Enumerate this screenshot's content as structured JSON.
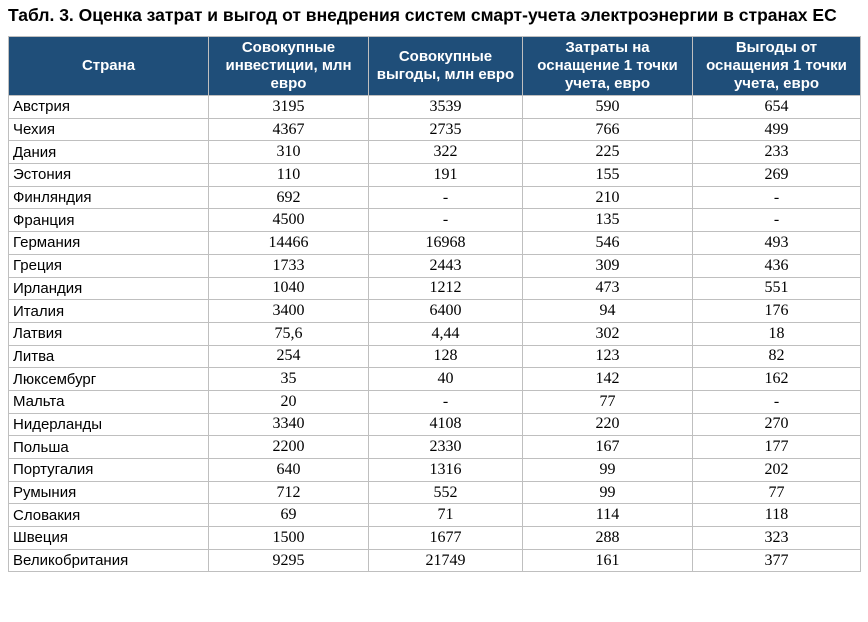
{
  "title": "Табл. 3. Оценка затрат и выгод от внедрения систем смарт-учета электроэнергии в странах ЕС",
  "colors": {
    "header_bg": "#1F4E79",
    "header_text": "#FFFFFF",
    "grid": "#BFBFBF"
  },
  "table": {
    "columns": [
      "Страна",
      "Совокупные инвестиции, млн евро",
      "Совокупные выгоды, млн евро",
      "Затраты на оснащение 1 точки учета, евро",
      "Выгоды от оснащения 1 точки учета, евро"
    ],
    "rows": [
      {
        "country": "Австрия",
        "values": [
          "3195",
          "3539",
          "590",
          "654"
        ]
      },
      {
        "country": "Чехия",
        "values": [
          "4367",
          "2735",
          "766",
          "499"
        ]
      },
      {
        "country": "Дания",
        "values": [
          "310",
          "322",
          "225",
          "233"
        ]
      },
      {
        "country": "Эстония",
        "values": [
          "110",
          "191",
          "155",
          "269"
        ]
      },
      {
        "country": "Финляндия",
        "values": [
          "692",
          "-",
          "210",
          "-"
        ]
      },
      {
        "country": "Франция",
        "values": [
          "4500",
          "-",
          "135",
          "-"
        ]
      },
      {
        "country": "Германия",
        "values": [
          "14466",
          "16968",
          "546",
          "493"
        ]
      },
      {
        "country": "Греция",
        "values": [
          "1733",
          "2443",
          "309",
          "436"
        ]
      },
      {
        "country": "Ирландия",
        "values": [
          "1040",
          "1212",
          "473",
          "551"
        ]
      },
      {
        "country": "Италия",
        "values": [
          "3400",
          "6400",
          "94",
          "176"
        ]
      },
      {
        "country": "Латвия",
        "values": [
          "75,6",
          "4,44",
          "302",
          "18"
        ]
      },
      {
        "country": "Литва",
        "values": [
          "254",
          "128",
          "123",
          "82"
        ]
      },
      {
        "country": "Люксембург",
        "values": [
          "35",
          "40",
          "142",
          "162"
        ]
      },
      {
        "country": "Мальта",
        "values": [
          "20",
          "-",
          "77",
          "-"
        ]
      },
      {
        "country": "Нидерланды",
        "values": [
          "3340",
          "4108",
          "220",
          "270"
        ]
      },
      {
        "country": "Польша",
        "values": [
          "2200",
          "2330",
          "167",
          "177"
        ]
      },
      {
        "country": "Португалия",
        "values": [
          "640",
          "1316",
          "99",
          "202"
        ]
      },
      {
        "country": "Румыния",
        "values": [
          "712",
          "552",
          "99",
          "77"
        ]
      },
      {
        "country": "Словакия",
        "values": [
          "69",
          "71",
          "114",
          "118"
        ]
      },
      {
        "country": "Швеция",
        "values": [
          "1500",
          "1677",
          "288",
          "323"
        ]
      },
      {
        "country": "Великобритания",
        "values": [
          "9295",
          "21749",
          "161",
          "377"
        ]
      }
    ]
  }
}
